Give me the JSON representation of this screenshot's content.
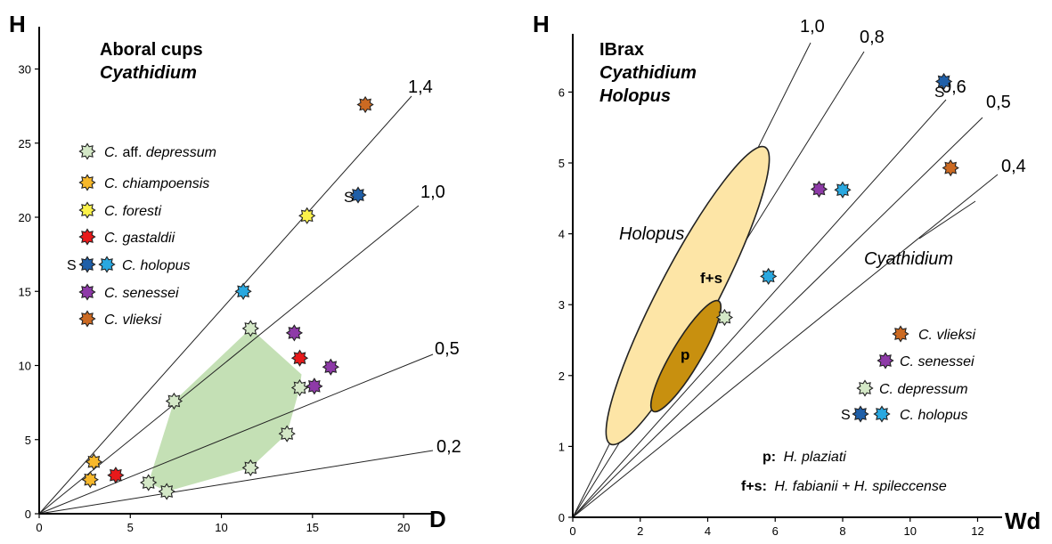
{
  "colors": {
    "depressum": "#d4e8c7",
    "chiampoensis": "#f7b82b",
    "foresti": "#fbf24a",
    "gastaldii": "#e8191a",
    "holopus_s": "#1f5fa8",
    "holopus": "#29a8e0",
    "senessei": "#8e3aa8",
    "vlieksi": "#cc6a22",
    "green_area": "#c4e0b5",
    "holopus_fs": "#fde5a6",
    "holopus_p": "#c8900f"
  },
  "chart_data": [
    {
      "type": "scatter",
      "title": "Aboral cups",
      "subtitle": "Cyathidium",
      "xlabel": "D",
      "ylabel": "H",
      "xlim": [
        0,
        22
      ],
      "ylim": [
        0,
        32
      ],
      "xticks": [
        0,
        5,
        10,
        15,
        20
      ],
      "yticks": [
        0,
        5,
        10,
        15,
        20,
        25,
        30
      ],
      "ratio_lines": [
        {
          "label": "1,4",
          "slope": 1.4
        },
        {
          "label": "1,0",
          "slope": 1.0
        },
        {
          "label": "0,5",
          "slope": 0.5
        },
        {
          "label": "0,2",
          "slope": 0.2
        }
      ],
      "hull_depressum": [
        [
          7.0,
          1.5
        ],
        [
          11.6,
          3.1
        ],
        [
          13.6,
          5.4
        ],
        [
          14.3,
          8.5
        ],
        [
          14.4,
          9.4
        ],
        [
          11.6,
          12.5
        ],
        [
          7.4,
          7.6
        ],
        [
          6.0,
          2.1
        ]
      ],
      "legend": [
        {
          "key": "depressum",
          "label_pre": "C. aff.",
          "label_italic": "depressum"
        },
        {
          "key": "chiampoensis",
          "label_italic": "C. chiampoensis"
        },
        {
          "key": "foresti",
          "label_italic": "C. foresti"
        },
        {
          "key": "gastaldii",
          "label_italic": "C. gastaldii"
        },
        {
          "key": "holopus",
          "label_italic": "C. holopus",
          "prefix": "S"
        },
        {
          "key": "senessei",
          "label_italic": "C. senessei"
        },
        {
          "key": "vlieksi",
          "label_italic": "C. vlieksi"
        }
      ],
      "series": [
        {
          "key": "depressum",
          "points": [
            [
              6.0,
              2.1
            ],
            [
              7.0,
              1.5
            ],
            [
              11.6,
              3.1
            ],
            [
              13.6,
              5.4
            ],
            [
              14.3,
              8.5
            ],
            [
              11.6,
              12.5
            ],
            [
              7.4,
              7.6
            ]
          ]
        },
        {
          "key": "chiampoensis",
          "points": [
            [
              2.8,
              2.3
            ],
            [
              3.0,
              3.5
            ]
          ]
        },
        {
          "key": "foresti",
          "points": [
            [
              14.7,
              20.1
            ]
          ]
        },
        {
          "key": "gastaldii",
          "points": [
            [
              4.2,
              2.6
            ],
            [
              14.3,
              10.5
            ]
          ]
        },
        {
          "key": "holopus_s",
          "points": [
            [
              17.5,
              21.5
            ]
          ]
        },
        {
          "key": "holopus",
          "points": [
            [
              11.2,
              15.0
            ]
          ]
        },
        {
          "key": "senessei",
          "points": [
            [
              14.0,
              12.2
            ],
            [
              16.0,
              9.9
            ],
            [
              15.1,
              8.6
            ]
          ]
        },
        {
          "key": "vlieksi",
          "points": [
            [
              17.9,
              27.6
            ]
          ]
        }
      ],
      "annotations": [
        {
          "text": "S",
          "at": [
            17.5,
            21.5
          ]
        }
      ]
    },
    {
      "type": "scatter",
      "title": "IBrax",
      "subtitle_lines": [
        "Cyathidium",
        "Holopus"
      ],
      "xlabel": "Wd",
      "ylabel": "H",
      "xlim": [
        0,
        12.7
      ],
      "ylim": [
        0,
        6.8
      ],
      "xticks": [
        0,
        2,
        4,
        6,
        8,
        10,
        12
      ],
      "yticks": [
        0,
        1,
        2,
        3,
        4,
        5,
        6
      ],
      "ratio_lines": [
        {
          "label": "1,0",
          "slope": 1.0
        },
        {
          "label": "0,8",
          "slope": 0.8
        },
        {
          "label": "0,6",
          "slope": 0.6
        },
        {
          "label": "0,5",
          "slope": 0.5
        },
        {
          "label": "0,4",
          "slope": 0.4
        }
      ],
      "region_labels": [
        "Holopus",
        "Cyathidium"
      ],
      "ellipse_labels": [
        "f+s",
        "p"
      ],
      "legend": [
        {
          "key": "vlieksi",
          "label_italic": "C. vlieksi"
        },
        {
          "key": "senessei",
          "label_italic": "C. senessei"
        },
        {
          "key": "depressum",
          "label_italic": "C. depressum"
        },
        {
          "key": "holopus",
          "label_italic": "C. holopus",
          "prefix": "S"
        }
      ],
      "notes": [
        {
          "bold": "p:",
          "italic": "H. plaziati"
        },
        {
          "bold": "f+s:",
          "italic": "H. fabianii + H. spileccense"
        }
      ],
      "series": [
        {
          "key": "vlieksi",
          "points": [
            [
              11.2,
              4.93
            ]
          ]
        },
        {
          "key": "senessei",
          "points": [
            [
              7.3,
              4.63
            ]
          ]
        },
        {
          "key": "depressum",
          "points": [
            [
              4.5,
              2.82
            ]
          ]
        },
        {
          "key": "holopus_s",
          "points": [
            [
              11.0,
              6.15
            ]
          ]
        },
        {
          "key": "holopus",
          "points": [
            [
              8.0,
              4.62
            ],
            [
              5.8,
              3.4
            ]
          ]
        }
      ],
      "annotations": [
        {
          "text": "S",
          "at": [
            11.0,
            6.15
          ]
        }
      ]
    }
  ]
}
